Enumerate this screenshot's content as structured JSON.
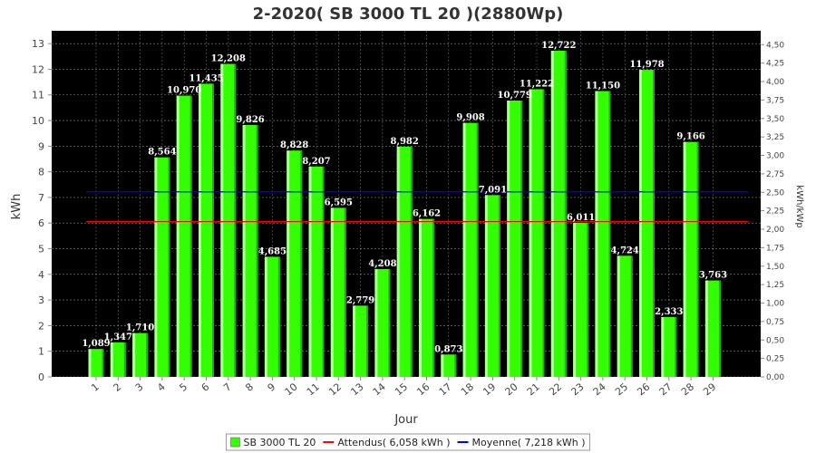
{
  "chart_data": {
    "type": "bar",
    "title": "2-2020( SB 3000 TL 20 )(2880Wp)",
    "xlabel": "Jour",
    "ylabel": "kWh",
    "y2label": "kWh/kWp",
    "ylim": [
      0,
      13.5
    ],
    "yticks": [
      0,
      1,
      2,
      3,
      4,
      5,
      6,
      7,
      8,
      9,
      10,
      11,
      12,
      13
    ],
    "y2lim": [
      0,
      4.6875
    ],
    "y2ticks": [
      "0,00",
      "0,25",
      "0,50",
      "0,75",
      "1,00",
      "1,25",
      "1,50",
      "1,75",
      "2,00",
      "2,25",
      "2,50",
      "2,75",
      "3,00",
      "3,25",
      "3,50",
      "3,75",
      "4,00",
      "4,25",
      "4,50"
    ],
    "y2values": [
      0,
      0.25,
      0.5,
      0.75,
      1.0,
      1.25,
      1.5,
      1.75,
      2.0,
      2.25,
      2.5,
      2.75,
      3.0,
      3.25,
      3.5,
      3.75,
      4.0,
      4.25,
      4.5
    ],
    "categories": [
      "1",
      "2",
      "3",
      "4",
      "5",
      "6",
      "7",
      "8",
      "9",
      "10",
      "11",
      "12",
      "13",
      "14",
      "15",
      "16",
      "17",
      "18",
      "19",
      "20",
      "21",
      "22",
      "23",
      "24",
      "25",
      "26",
      "27",
      "28",
      "29"
    ],
    "series": [
      {
        "name": "SB 3000 TL 20",
        "color": "#33ff00",
        "values": [
          1.089,
          1.347,
          1.71,
          8.564,
          10.97,
          11.435,
          12.208,
          9.826,
          4.685,
          8.828,
          8.207,
          6.595,
          2.779,
          4.208,
          8.982,
          6.162,
          0.873,
          9.908,
          7.091,
          10.779,
          11.222,
          12.722,
          6.011,
          11.15,
          4.724,
          11.978,
          2.333,
          9.166,
          3.763
        ],
        "labels": [
          "1,089",
          "1,347",
          "1,710",
          "8,564",
          "10,970",
          "11,435",
          "12,208",
          "9,826",
          "4,685",
          "8,828",
          "8,207",
          "6,595",
          "2,779",
          "4,208",
          "8,982",
          "6,162",
          "0,873",
          "9,908",
          "7,091",
          "10,779",
          "11,222",
          "12,722",
          "6,011",
          "11,150",
          "4,724",
          "11,978",
          "2,333",
          "9,166",
          "3,763"
        ]
      }
    ],
    "reference_lines": [
      {
        "name": "Attendus( 6,058 kWh )",
        "value": 6.058,
        "color": "#ff0000"
      },
      {
        "name": "Moyenne( 7,218 kWh )",
        "value": 7.218,
        "color": "#0000ff"
      }
    ],
    "background": "#000000",
    "grid": true,
    "legend_position": "bottom"
  }
}
